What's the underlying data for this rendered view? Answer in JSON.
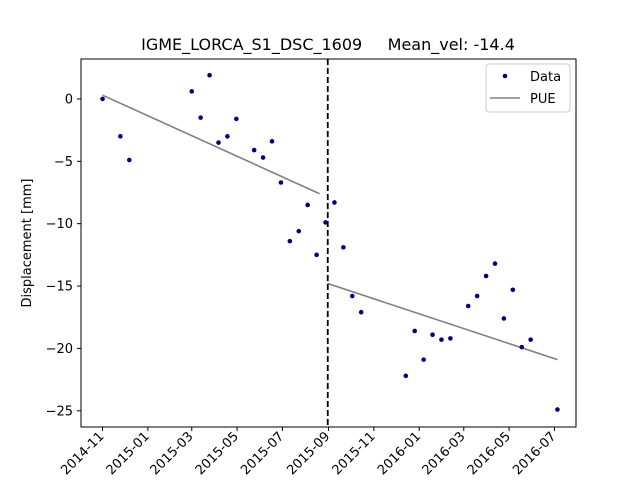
{
  "chart_data": {
    "type": "scatter",
    "title": "IGME_LORCA_S1_DSC_1609     Mean_vel: -14.4",
    "xlabel": "",
    "ylabel": "Displacement [mm]",
    "xlim": [
      "2014-10-03",
      "2016-07-30"
    ],
    "ylim": [
      -26.3,
      3.2
    ],
    "x_ticks": [
      "2014-11",
      "2015-01",
      "2015-03",
      "2015-05",
      "2015-07",
      "2015-09",
      "2015-11",
      "2016-01",
      "2016-03",
      "2016-05",
      "2016-07"
    ],
    "y_ticks": [
      0,
      -5,
      -10,
      -15,
      -20,
      -25
    ],
    "grid": false,
    "legend_position": "top-right",
    "break_date": "2015-08-31",
    "colors": {
      "data": "#00007f",
      "pue": "#808080",
      "break_line": "#000000"
    },
    "series": [
      {
        "name": "Data",
        "style": "points",
        "points": [
          {
            "x": "2014-11-01",
            "y": 0.0
          },
          {
            "x": "2014-11-25",
            "y": -3.0
          },
          {
            "x": "2014-12-07",
            "y": -4.9
          },
          {
            "x": "2015-03-01",
            "y": 0.6
          },
          {
            "x": "2015-03-13",
            "y": -1.5
          },
          {
            "x": "2015-03-25",
            "y": 1.9
          },
          {
            "x": "2015-04-06",
            "y": -3.5
          },
          {
            "x": "2015-04-18",
            "y": -3.0
          },
          {
            "x": "2015-04-30",
            "y": -1.6
          },
          {
            "x": "2015-05-24",
            "y": -4.1
          },
          {
            "x": "2015-06-05",
            "y": -4.7
          },
          {
            "x": "2015-06-17",
            "y": -3.4
          },
          {
            "x": "2015-06-29",
            "y": -6.7
          },
          {
            "x": "2015-07-11",
            "y": -11.4
          },
          {
            "x": "2015-07-23",
            "y": -10.6
          },
          {
            "x": "2015-08-04",
            "y": -8.5
          },
          {
            "x": "2015-08-16",
            "y": -12.5
          },
          {
            "x": "2015-08-28",
            "y": -9.9
          },
          {
            "x": "2015-09-09",
            "y": -8.3
          },
          {
            "x": "2015-09-21",
            "y": -11.9
          },
          {
            "x": "2015-10-03",
            "y": -15.8
          },
          {
            "x": "2015-10-15",
            "y": -17.1
          },
          {
            "x": "2015-12-14",
            "y": -22.2
          },
          {
            "x": "2015-12-26",
            "y": -18.6
          },
          {
            "x": "2016-01-07",
            "y": -20.9
          },
          {
            "x": "2016-01-19",
            "y": -18.9
          },
          {
            "x": "2016-01-31",
            "y": -19.3
          },
          {
            "x": "2016-02-12",
            "y": -19.2
          },
          {
            "x": "2016-03-07",
            "y": -16.6
          },
          {
            "x": "2016-03-19",
            "y": -15.8
          },
          {
            "x": "2016-03-31",
            "y": -14.2
          },
          {
            "x": "2016-04-12",
            "y": -13.2
          },
          {
            "x": "2016-04-24",
            "y": -17.6
          },
          {
            "x": "2016-05-06",
            "y": -15.3
          },
          {
            "x": "2016-05-18",
            "y": -19.9
          },
          {
            "x": "2016-05-30",
            "y": -19.3
          },
          {
            "x": "2016-07-05",
            "y": -24.9
          }
        ]
      },
      {
        "name": "PUE",
        "style": "line",
        "segments": [
          [
            {
              "x": "2014-11-01",
              "y": 0.3
            },
            {
              "x": "2015-08-20",
              "y": -7.6
            }
          ],
          [
            {
              "x": "2015-08-31",
              "y": -14.8
            },
            {
              "x": "2016-07-05",
              "y": -20.9
            }
          ]
        ]
      }
    ]
  }
}
